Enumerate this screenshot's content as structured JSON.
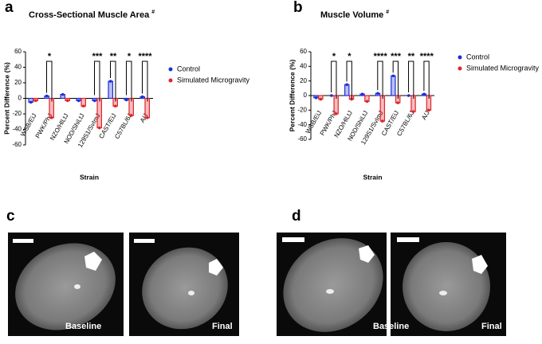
{
  "chart_data": [
    {
      "type": "bar",
      "panel": "a",
      "title": "Cross-Sectional Muscle Area",
      "title_note": "#",
      "y_label": "Percent Difference (%)",
      "x_label": "Strain",
      "categories": [
        "WSB/EiJ",
        "PWK/PhJ",
        "NZO/HlLtJ",
        "NOD/ShiLtJ",
        "129S1/SvImJ",
        "CAST/EiJ",
        "C57BL/6J",
        "A/J"
      ],
      "series": [
        {
          "name": "Control",
          "color": "#1a2fd6",
          "values": [
            -5,
            3,
            5,
            -3,
            -3,
            22,
            -2,
            2
          ]
        },
        {
          "name": "Simulated Microgravity",
          "color": "#e0242a",
          "values": [
            -3,
            -25,
            -3,
            -10,
            -38,
            -10,
            -22,
            -25
          ]
        }
      ],
      "significance": [
        null,
        "*",
        null,
        null,
        "***",
        "**",
        "*",
        "****"
      ],
      "ylim": [
        -60,
        60
      ],
      "yticks": [
        -60,
        -40,
        -20,
        0,
        20,
        40,
        60
      ]
    },
    {
      "type": "bar",
      "panel": "b",
      "title": "Muscle Volume",
      "title_note": "#",
      "y_label": "Percent Difference (%)",
      "x_label": "Strain",
      "categories": [
        "WSB/EiJ",
        "PWK/PhJ",
        "NZO/HlLtJ",
        "NOD/ShiLtJ",
        "129S1/SvImJ",
        "CAST/EiJ",
        "C57BL/6J",
        "A/J"
      ],
      "series": [
        {
          "name": "Control",
          "color": "#1a2fd6",
          "values": [
            -3,
            0,
            15,
            2,
            3,
            27,
            0,
            2
          ]
        },
        {
          "name": "Simulated Microgravity",
          "color": "#e0242a",
          "values": [
            -5,
            -25,
            -5,
            -8,
            -35,
            -10,
            -22,
            -20
          ]
        }
      ],
      "significance": [
        null,
        "*",
        "*",
        null,
        "****",
        "***",
        "**",
        "****"
      ],
      "ylim": [
        -60,
        60
      ],
      "yticks": [
        -60,
        -40,
        -20,
        0,
        20,
        40,
        60
      ]
    }
  ],
  "images": [
    {
      "panel": "c",
      "labels": [
        "Baseline",
        "Final"
      ]
    },
    {
      "panel": "d",
      "labels": [
        "Baseline",
        "Final"
      ]
    }
  ]
}
